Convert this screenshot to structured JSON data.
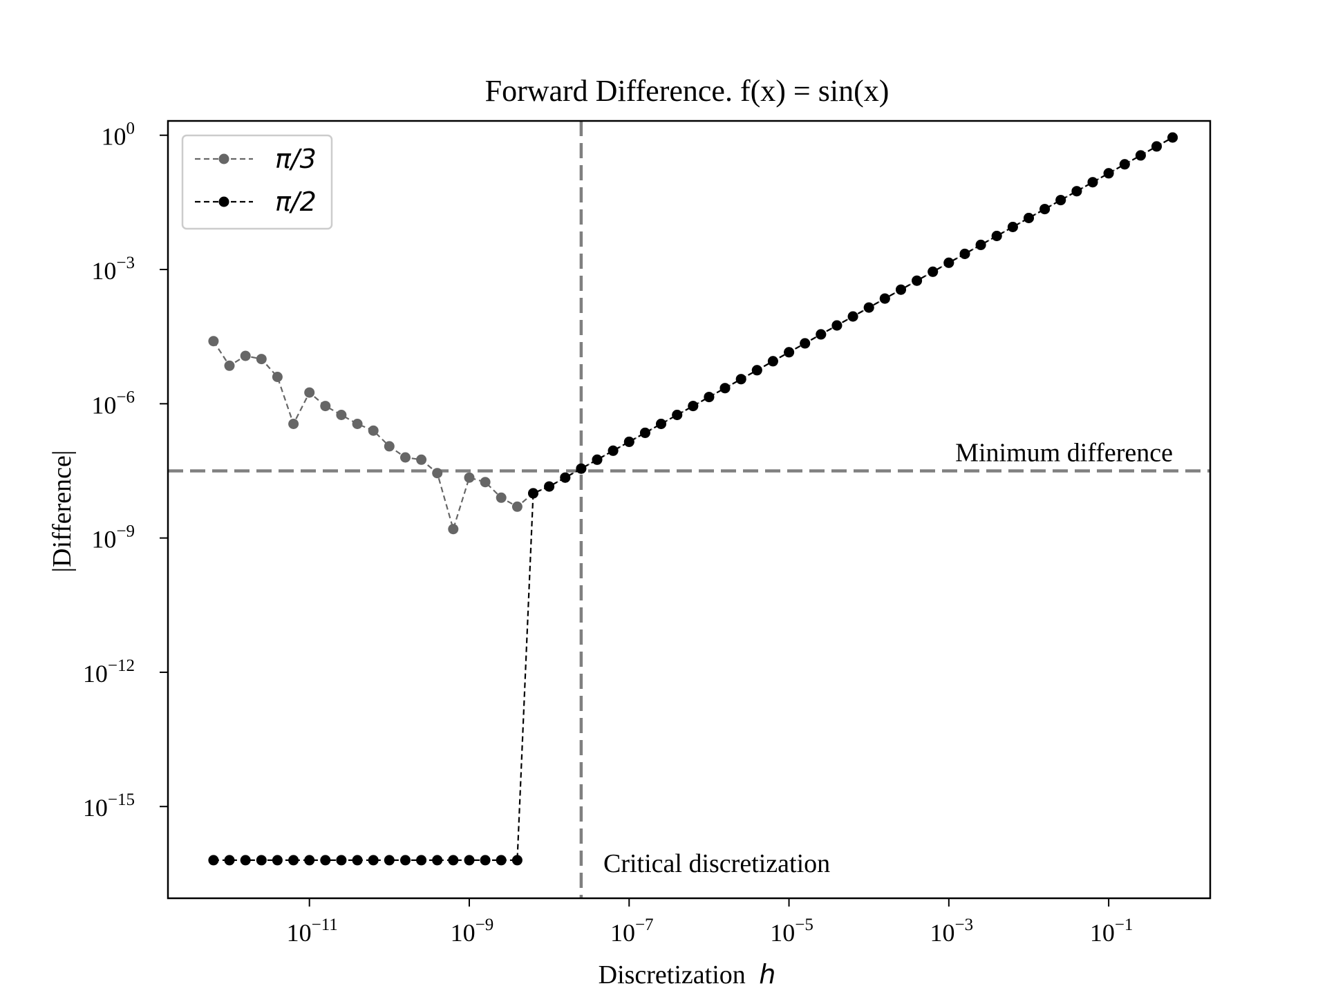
{
  "chart_data": {
    "type": "line",
    "title": "Forward Difference. f(x) = sin(x)",
    "xlabel": "Discretization",
    "xlabel_var": "h",
    "ylabel": "|Difference|",
    "xscale": "log",
    "yscale": "log",
    "xlim_log10": [
      -12.77,
      0.27
    ],
    "ylim_log10": [
      -17.05,
      0.32
    ],
    "x_ticks": [
      {
        "exp": -11,
        "base": "10",
        "power": "−11"
      },
      {
        "exp": -9,
        "base": "10",
        "power": "−9"
      },
      {
        "exp": -7,
        "base": "10",
        "power": "−7"
      },
      {
        "exp": -5,
        "base": "10",
        "power": "−5"
      },
      {
        "exp": -3,
        "base": "10",
        "power": "−3"
      },
      {
        "exp": -1,
        "base": "10",
        "power": "−1"
      }
    ],
    "y_ticks": [
      {
        "exp": 0,
        "base": "10",
        "power": "0"
      },
      {
        "exp": -3,
        "base": "10",
        "power": "−3"
      },
      {
        "exp": -6,
        "base": "10",
        "power": "−6"
      },
      {
        "exp": -9,
        "base": "10",
        "power": "−9"
      },
      {
        "exp": -12,
        "base": "10",
        "power": "−12"
      },
      {
        "exp": -15,
        "base": "10",
        "power": "−15"
      }
    ],
    "grid": false,
    "legend_position": "upper left",
    "series": [
      {
        "name": "π/3",
        "color": "#666666",
        "marker": "circle",
        "linestyle": "dashed",
        "log10_x": [
          -12.2,
          -12.0,
          -11.8,
          -11.6,
          -11.4,
          -11.2,
          -11.0,
          -10.8,
          -10.6,
          -10.4,
          -10.2,
          -10.0,
          -9.8,
          -9.6,
          -9.4,
          -9.2,
          -9.0,
          -8.8,
          -8.6,
          -8.4,
          -8.2,
          -8.0,
          -7.8,
          -7.6,
          -7.4,
          -7.2,
          -7.0,
          -6.8,
          -6.6,
          -6.4,
          -6.2,
          -6.0,
          -5.8,
          -5.6,
          -5.4,
          -5.2,
          -5.0,
          -4.8,
          -4.6,
          -4.4,
          -4.2,
          -4.0,
          -3.8,
          -3.6,
          -3.4,
          -3.2,
          -3.0,
          -2.8,
          -2.6,
          -2.4,
          -2.2,
          -2.0,
          -1.8,
          -1.6,
          -1.4,
          -1.2,
          -1.0,
          -0.8,
          -0.6,
          -0.4,
          -0.2
        ],
        "log10_y": [
          -4.6,
          -5.15,
          -4.93,
          -5.0,
          -5.4,
          -6.45,
          -5.75,
          -6.05,
          -6.25,
          -6.45,
          -6.6,
          -6.95,
          -7.2,
          -7.25,
          -7.55,
          -8.8,
          -7.65,
          -7.75,
          -8.1,
          -8.3,
          -8.0,
          -7.85,
          -7.65,
          -7.45,
          -7.25,
          -7.05,
          -6.85,
          -6.65,
          -6.45,
          -6.25,
          -6.05,
          -5.85,
          -5.65,
          -5.45,
          -5.25,
          -5.05,
          -4.85,
          -4.65,
          -4.45,
          -4.25,
          -4.05,
          -3.85,
          -3.65,
          -3.45,
          -3.25,
          -3.05,
          -2.85,
          -2.65,
          -2.45,
          -2.25,
          -2.05,
          -1.85,
          -1.65,
          -1.45,
          -1.25,
          -1.05,
          -0.85,
          -0.65,
          -0.45,
          -0.25,
          -0.05
        ]
      },
      {
        "name": "π/2",
        "color": "#000000",
        "marker": "circle",
        "linestyle": "dashed",
        "log10_x": [
          -12.2,
          -12.0,
          -11.8,
          -11.6,
          -11.4,
          -11.2,
          -11.0,
          -10.8,
          -10.6,
          -10.4,
          -10.2,
          -10.0,
          -9.8,
          -9.6,
          -9.4,
          -9.2,
          -9.0,
          -8.8,
          -8.6,
          -8.4,
          -8.2,
          -8.0,
          -7.8,
          -7.6,
          -7.4,
          -7.2,
          -7.0,
          -6.8,
          -6.6,
          -6.4,
          -6.2,
          -6.0,
          -5.8,
          -5.6,
          -5.4,
          -5.2,
          -5.0,
          -4.8,
          -4.6,
          -4.4,
          -4.2,
          -4.0,
          -3.8,
          -3.6,
          -3.4,
          -3.2,
          -3.0,
          -2.8,
          -2.6,
          -2.4,
          -2.2,
          -2.0,
          -1.8,
          -1.6,
          -1.4,
          -1.2,
          -1.0,
          -0.8,
          -0.6,
          -0.4,
          -0.2
        ],
        "log10_y": [
          -16.2,
          -16.2,
          -16.2,
          -16.2,
          -16.2,
          -16.2,
          -16.2,
          -16.2,
          -16.2,
          -16.2,
          -16.2,
          -16.2,
          -16.2,
          -16.2,
          -16.2,
          -16.2,
          -16.2,
          -16.2,
          -16.2,
          -16.2,
          -8.0,
          -7.85,
          -7.65,
          -7.45,
          -7.25,
          -7.05,
          -6.85,
          -6.65,
          -6.45,
          -6.25,
          -6.05,
          -5.85,
          -5.65,
          -5.45,
          -5.25,
          -5.05,
          -4.85,
          -4.65,
          -4.45,
          -4.25,
          -4.05,
          -3.85,
          -3.65,
          -3.45,
          -3.25,
          -3.05,
          -2.85,
          -2.65,
          -2.45,
          -2.25,
          -2.05,
          -1.85,
          -1.65,
          -1.45,
          -1.25,
          -1.05,
          -0.85,
          -0.65,
          -0.45,
          -0.25,
          -0.05
        ]
      }
    ],
    "reference_lines": [
      {
        "orientation": "horizontal",
        "log10_value": -7.5,
        "label": "Minimum difference",
        "color": "#808080"
      },
      {
        "orientation": "vertical",
        "log10_value": -7.6,
        "label": "Critical discretization",
        "color": "#808080"
      }
    ]
  }
}
